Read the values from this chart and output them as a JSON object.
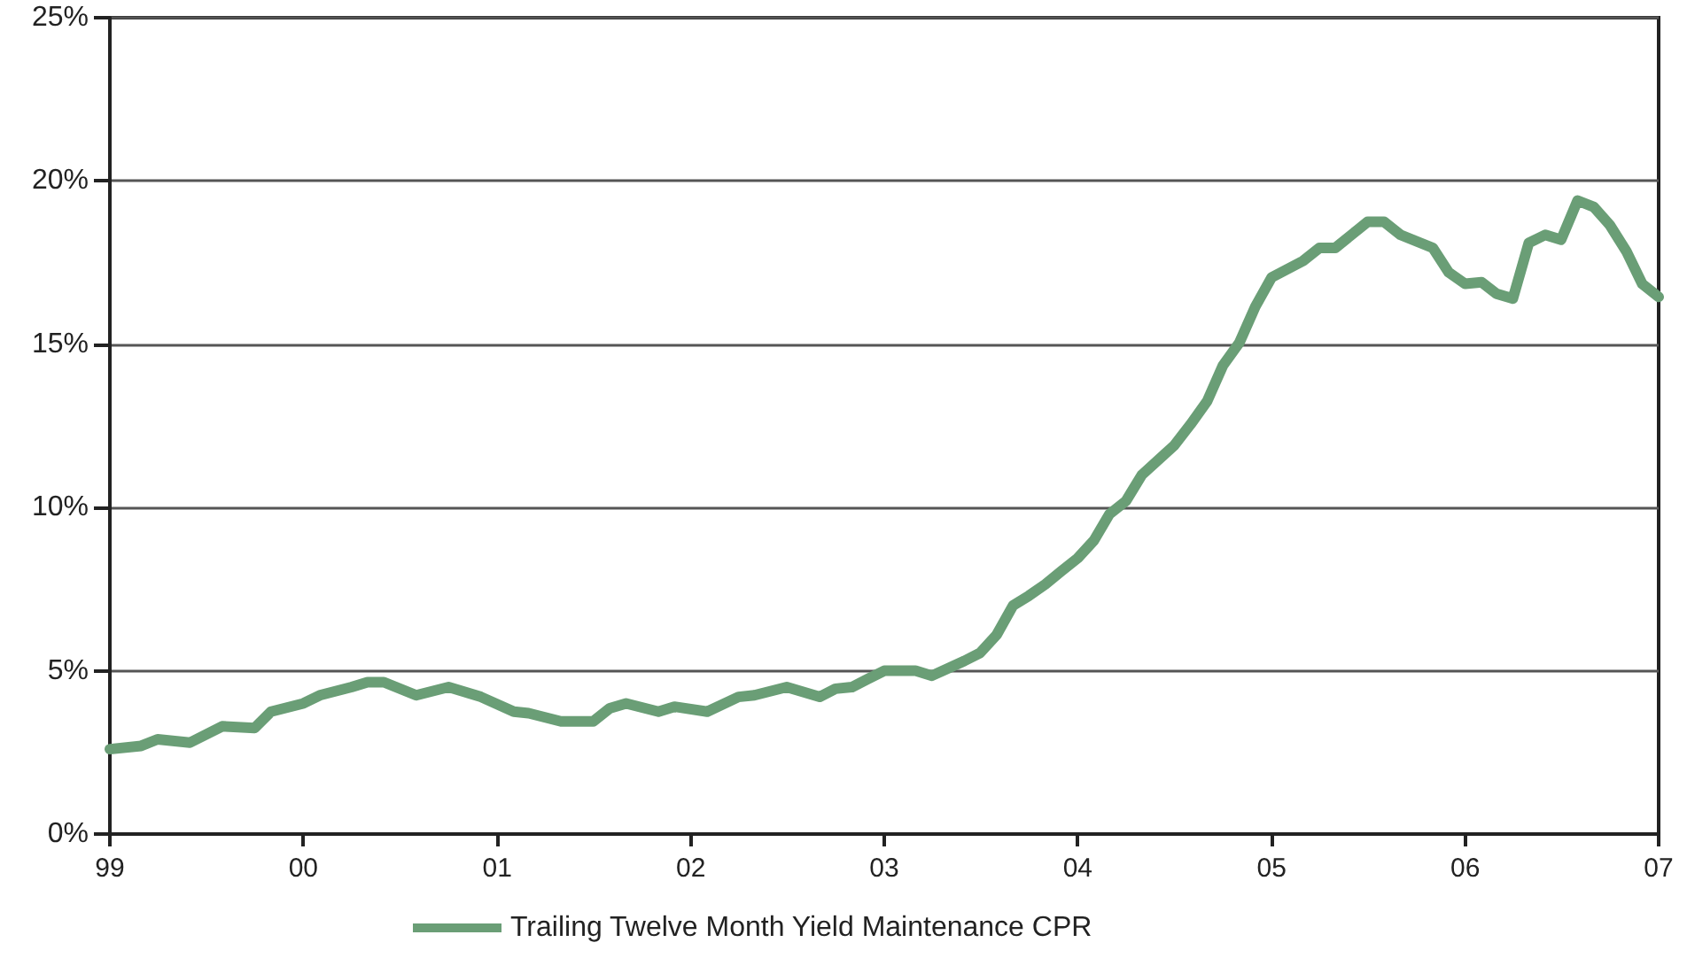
{
  "chart_data": {
    "type": "line",
    "x": [
      "1999-01",
      "1999-03",
      "1999-04",
      "1999-06",
      "1999-08",
      "1999-10",
      "1999-11",
      "2000-01",
      "2000-02",
      "2000-04",
      "2000-05",
      "2000-06",
      "2000-08",
      "2000-10",
      "2000-12",
      "2001-02",
      "2001-03",
      "2001-05",
      "2001-07",
      "2001-08",
      "2001-09",
      "2001-11",
      "2001-12",
      "2002-02",
      "2002-04",
      "2002-05",
      "2002-07",
      "2002-09",
      "2002-10",
      "2002-11",
      "2002-12",
      "2003-01",
      "2003-03",
      "2003-04",
      "2003-06",
      "2003-07",
      "2003-08",
      "2003-09",
      "2003-10",
      "2003-11",
      "2003-12",
      "2004-01",
      "2004-02",
      "2004-03",
      "2004-04",
      "2004-05",
      "2004-07",
      "2004-08",
      "2004-09",
      "2004-10",
      "2004-11",
      "2004-12",
      "2005-01",
      "2005-03",
      "2005-04",
      "2005-05",
      "2005-07",
      "2005-08",
      "2005-09",
      "2005-11",
      "2005-12",
      "2006-01",
      "2006-02",
      "2006-03",
      "2006-04",
      "2006-05",
      "2006-06",
      "2006-07",
      "2006-08",
      "2006-09",
      "2006-10",
      "2006-11",
      "2006-12",
      "2007-01"
    ],
    "series": [
      {
        "name": "Trailing Twelve Month Yield Maintenance CPR",
        "color": "#6a9e76",
        "values": [
          2.6,
          2.7,
          2.9,
          2.8,
          3.3,
          3.25,
          3.75,
          4.0,
          4.25,
          4.5,
          4.65,
          4.65,
          4.25,
          4.5,
          4.2,
          3.75,
          3.7,
          3.45,
          3.45,
          3.85,
          4.0,
          3.75,
          3.9,
          3.75,
          4.2,
          4.25,
          4.5,
          4.2,
          4.45,
          4.5,
          4.75,
          5.0,
          5.0,
          4.85,
          5.3,
          5.55,
          6.1,
          7.0,
          7.3,
          7.65,
          8.05,
          8.45,
          9.0,
          9.8,
          10.2,
          11.0,
          11.9,
          12.55,
          13.25,
          14.35,
          15.05,
          16.15,
          17.05,
          17.55,
          17.95,
          17.95,
          18.75,
          18.75,
          18.35,
          17.95,
          17.2,
          16.85,
          16.9,
          16.55,
          16.4,
          18.1,
          18.35,
          18.2,
          19.4,
          19.2,
          18.65,
          17.85,
          16.85,
          16.45
        ]
      }
    ],
    "xlim": [
      "1999",
      "2007"
    ],
    "xticks": [
      {
        "value": "1999",
        "label": "99"
      },
      {
        "value": "2000",
        "label": "00"
      },
      {
        "value": "2001",
        "label": "01"
      },
      {
        "value": "2002",
        "label": "02"
      },
      {
        "value": "2003",
        "label": "03"
      },
      {
        "value": "2004",
        "label": "04"
      },
      {
        "value": "2005",
        "label": "05"
      },
      {
        "value": "2006",
        "label": "06"
      },
      {
        "value": "2007",
        "label": "07"
      }
    ],
    "ylim": [
      0,
      25
    ],
    "yticks": [
      {
        "value": 0,
        "label": "0%"
      },
      {
        "value": 5,
        "label": "5%"
      },
      {
        "value": 10,
        "label": "10%"
      },
      {
        "value": 15,
        "label": "15%"
      },
      {
        "value": 20,
        "label": "20%"
      },
      {
        "value": 25,
        "label": "25%"
      }
    ],
    "grid": "y",
    "legend": "bottom",
    "marker": "none",
    "line_style": "solid"
  }
}
